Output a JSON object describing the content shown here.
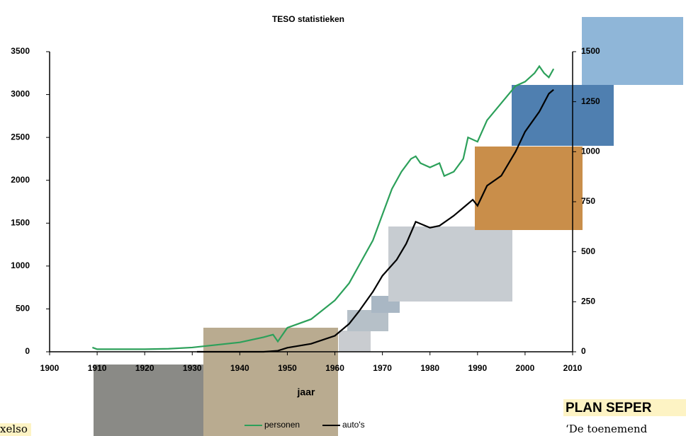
{
  "chart_data": {
    "type": "line",
    "title": "TESO statistieken",
    "xlabel": "jaar",
    "xlim": [
      1900,
      2010
    ],
    "xticks": [
      1900,
      1910,
      1920,
      1930,
      1940,
      1950,
      1960,
      1970,
      1980,
      1990,
      2000,
      2010
    ],
    "ylim": [
      0,
      3500
    ],
    "yticks": [
      0,
      500,
      1000,
      1500,
      2000,
      2500,
      3000,
      3500
    ],
    "y2lim": [
      0,
      1500
    ],
    "y2ticks": [
      0,
      250,
      500,
      750,
      1000,
      1250,
      1500
    ],
    "series": [
      {
        "name": "personen",
        "color": "#2ca05a",
        "x": [
          1909,
          1910,
          1915,
          1920,
          1925,
          1930,
          1935,
          1940,
          1945,
          1947,
          1948,
          1950,
          1955,
          1960,
          1963,
          1965,
          1968,
          1970,
          1972,
          1974,
          1976,
          1977,
          1978,
          1980,
          1982,
          1983,
          1985,
          1987,
          1988,
          1990,
          1992,
          1995,
          1998,
          2000,
          2002,
          2003,
          2004,
          2005,
          2006
        ],
        "values": [
          50,
          30,
          30,
          30,
          35,
          50,
          80,
          110,
          170,
          200,
          120,
          280,
          380,
          600,
          800,
          1000,
          1300,
          1600,
          1900,
          2100,
          2250,
          2280,
          2200,
          2150,
          2200,
          2050,
          2100,
          2250,
          2500,
          2450,
          2700,
          2900,
          3100,
          3150,
          3250,
          3330,
          3250,
          3200,
          3300
        ]
      },
      {
        "name": "auto's",
        "color": "#000000",
        "axis": "y2",
        "x": [
          1931,
          1935,
          1940,
          1945,
          1948,
          1950,
          1955,
          1960,
          1963,
          1965,
          1968,
          1970,
          1973,
          1975,
          1977,
          1978,
          1980,
          1982,
          1985,
          1987,
          1989,
          1990,
          1992,
          1995,
          1998,
          2000,
          2003,
          2005,
          2006
        ],
        "values": [
          0,
          0,
          0,
          0,
          5,
          20,
          40,
          80,
          140,
          200,
          300,
          380,
          460,
          540,
          650,
          640,
          620,
          630,
          680,
          720,
          760,
          730,
          830,
          880,
          1000,
          1100,
          1200,
          1290,
          1310
        ]
      }
    ]
  },
  "fragments": {
    "heading": "PLAN SEPER",
    "quote": "‘De toenemend",
    "left": "xelso"
  }
}
